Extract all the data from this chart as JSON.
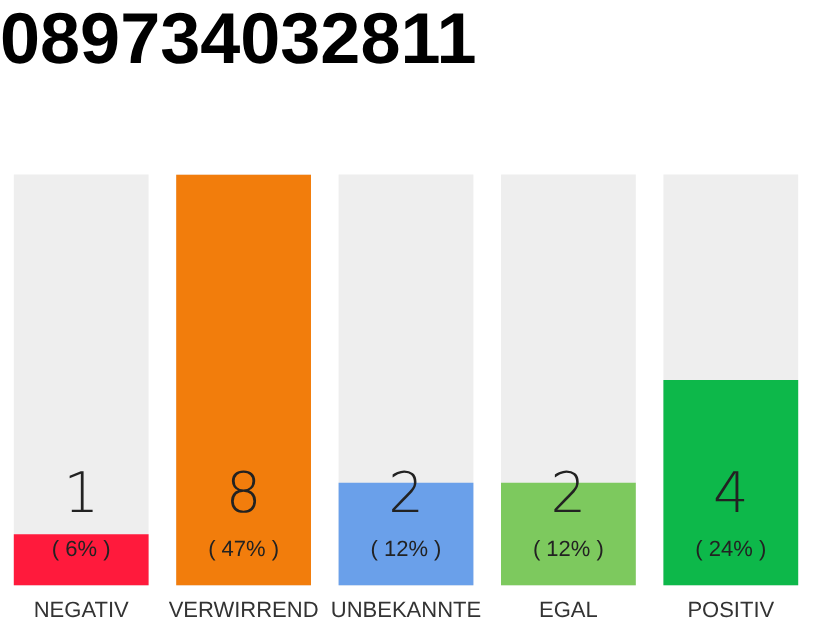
{
  "chart_data": {
    "type": "bar",
    "title": "089734032811",
    "categories": [
      "NEGATIV",
      "VERWIRREND",
      "UNBEKANNTE",
      "EGAL",
      "POSITIV"
    ],
    "values": [
      1,
      8,
      2,
      2,
      4
    ],
    "colors": [
      "#ff1a3c",
      "#f27d0c",
      "#6aa0ea",
      "#7dc95e",
      "#0db84a"
    ],
    "data_labels": true,
    "value_labels": [
      "1\n( 6% )",
      "8\n( 47% )",
      "2\n( 12% )",
      "2\n( 12% )",
      "4\n( 24% )"
    ],
    "grid": false,
    "legend": false
  }
}
